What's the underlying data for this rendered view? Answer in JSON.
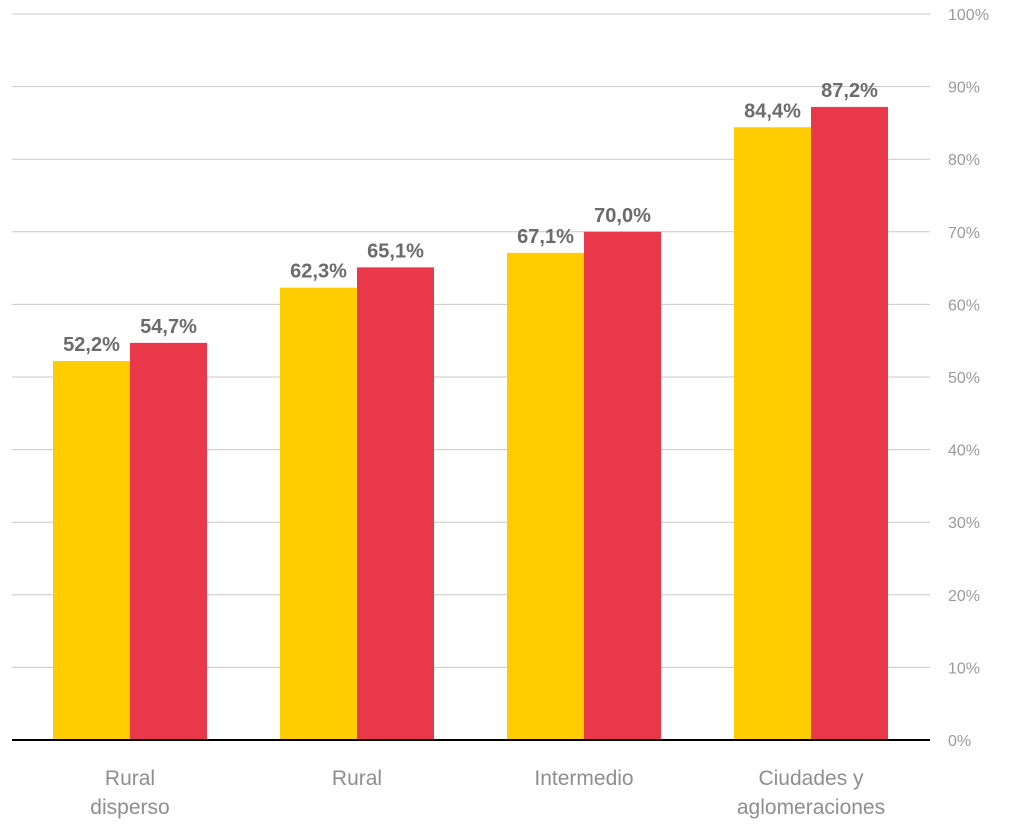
{
  "chart_data": {
    "type": "bar",
    "categories": [
      [
        "Rural",
        "disperso"
      ],
      [
        "Rural"
      ],
      [
        "Intermedio"
      ],
      [
        "Ciudades y",
        "aglomeraciones"
      ]
    ],
    "series": [
      {
        "color": "#FFCC00",
        "values": [
          52.2,
          62.3,
          67.1,
          84.4
        ],
        "labels": [
          "52,2%",
          "62,3%",
          "67,1%",
          "84,4%"
        ]
      },
      {
        "color": "#E8384A",
        "values": [
          54.7,
          65.1,
          70.0,
          87.2
        ],
        "labels": [
          "54,7%",
          "65,1%",
          "70,0%",
          "87,2%"
        ]
      }
    ],
    "ylim": [
      0,
      100
    ],
    "yticks": [
      "0%",
      "10%",
      "20%",
      "30%",
      "40%",
      "50%",
      "60%",
      "70%",
      "80%",
      "90%",
      "100%"
    ],
    "y_axis_position": "right",
    "grid": true,
    "legend": "none",
    "title": "",
    "xlabel": "",
    "ylabel": ""
  }
}
